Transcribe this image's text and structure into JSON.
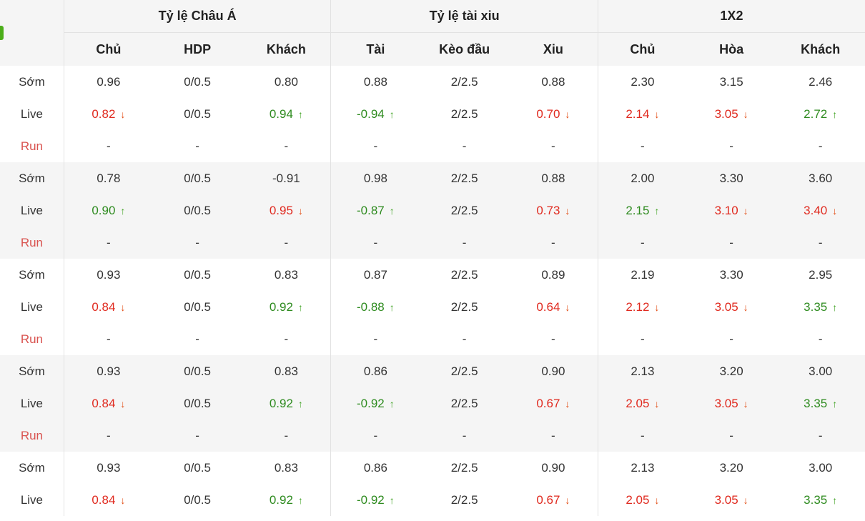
{
  "colors": {
    "up": "#2e8b1f",
    "down": "#e02a1f",
    "run_label": "#d9534f",
    "header_bg": "#f5f5f5",
    "accent_tab": "#4cae1a"
  },
  "groups": [
    "Tỷ lệ Châu Á",
    "Tỷ lệ tài xiu",
    "1X2"
  ],
  "columns": [
    "Chủ",
    "HDP",
    "Khách",
    "Tài",
    "Kèo đầu",
    "Xiu",
    "Chủ",
    "Hòa",
    "Khách"
  ],
  "rows": [
    {
      "label": "Sớm",
      "cells": [
        {
          "v": "0.96"
        },
        {
          "v": "0/0.5"
        },
        {
          "v": "0.80"
        },
        {
          "v": "0.88"
        },
        {
          "v": "2/2.5"
        },
        {
          "v": "0.88"
        },
        {
          "v": "2.30"
        },
        {
          "v": "3.15"
        },
        {
          "v": "2.46"
        }
      ]
    },
    {
      "label": "Live",
      "cells": [
        {
          "v": "0.82",
          "d": "down"
        },
        {
          "v": "0/0.5"
        },
        {
          "v": "0.94",
          "d": "up"
        },
        {
          "v": "-0.94",
          "d": "up"
        },
        {
          "v": "2/2.5"
        },
        {
          "v": "0.70",
          "d": "down"
        },
        {
          "v": "2.14",
          "d": "down"
        },
        {
          "v": "3.05",
          "d": "down"
        },
        {
          "v": "2.72",
          "d": "up"
        }
      ]
    },
    {
      "label": "Run",
      "cells": [
        {
          "v": "-"
        },
        {
          "v": "-"
        },
        {
          "v": "-"
        },
        {
          "v": "-"
        },
        {
          "v": "-"
        },
        {
          "v": "-"
        },
        {
          "v": "-"
        },
        {
          "v": "-"
        },
        {
          "v": "-"
        }
      ]
    },
    {
      "label": "Sớm",
      "cells": [
        {
          "v": "0.78"
        },
        {
          "v": "0/0.5"
        },
        {
          "v": "-0.91"
        },
        {
          "v": "0.98"
        },
        {
          "v": "2/2.5"
        },
        {
          "v": "0.88"
        },
        {
          "v": "2.00"
        },
        {
          "v": "3.30"
        },
        {
          "v": "3.60"
        }
      ]
    },
    {
      "label": "Live",
      "cells": [
        {
          "v": "0.90",
          "d": "up"
        },
        {
          "v": "0/0.5"
        },
        {
          "v": "0.95",
          "d": "down"
        },
        {
          "v": "-0.87",
          "d": "up"
        },
        {
          "v": "2/2.5"
        },
        {
          "v": "0.73",
          "d": "down"
        },
        {
          "v": "2.15",
          "d": "up"
        },
        {
          "v": "3.10",
          "d": "down"
        },
        {
          "v": "3.40",
          "d": "down"
        }
      ]
    },
    {
      "label": "Run",
      "cells": [
        {
          "v": "-"
        },
        {
          "v": "-"
        },
        {
          "v": "-"
        },
        {
          "v": "-"
        },
        {
          "v": "-"
        },
        {
          "v": "-"
        },
        {
          "v": "-"
        },
        {
          "v": "-"
        },
        {
          "v": "-"
        }
      ]
    },
    {
      "label": "Sớm",
      "cells": [
        {
          "v": "0.93"
        },
        {
          "v": "0/0.5"
        },
        {
          "v": "0.83"
        },
        {
          "v": "0.87"
        },
        {
          "v": "2/2.5"
        },
        {
          "v": "0.89"
        },
        {
          "v": "2.19"
        },
        {
          "v": "3.30"
        },
        {
          "v": "2.95"
        }
      ]
    },
    {
      "label": "Live",
      "cells": [
        {
          "v": "0.84",
          "d": "down"
        },
        {
          "v": "0/0.5"
        },
        {
          "v": "0.92",
          "d": "up"
        },
        {
          "v": "-0.88",
          "d": "up"
        },
        {
          "v": "2/2.5"
        },
        {
          "v": "0.64",
          "d": "down"
        },
        {
          "v": "2.12",
          "d": "down"
        },
        {
          "v": "3.05",
          "d": "down"
        },
        {
          "v": "3.35",
          "d": "up"
        }
      ]
    },
    {
      "label": "Run",
      "cells": [
        {
          "v": "-"
        },
        {
          "v": "-"
        },
        {
          "v": "-"
        },
        {
          "v": "-"
        },
        {
          "v": "-"
        },
        {
          "v": "-"
        },
        {
          "v": "-"
        },
        {
          "v": "-"
        },
        {
          "v": "-"
        }
      ]
    },
    {
      "label": "Sớm",
      "cells": [
        {
          "v": "0.93"
        },
        {
          "v": "0/0.5"
        },
        {
          "v": "0.83"
        },
        {
          "v": "0.86"
        },
        {
          "v": "2/2.5"
        },
        {
          "v": "0.90"
        },
        {
          "v": "2.13"
        },
        {
          "v": "3.20"
        },
        {
          "v": "3.00"
        }
      ]
    },
    {
      "label": "Live",
      "cells": [
        {
          "v": "0.84",
          "d": "down"
        },
        {
          "v": "0/0.5"
        },
        {
          "v": "0.92",
          "d": "up"
        },
        {
          "v": "-0.92",
          "d": "up"
        },
        {
          "v": "2/2.5"
        },
        {
          "v": "0.67",
          "d": "down"
        },
        {
          "v": "2.05",
          "d": "down"
        },
        {
          "v": "3.05",
          "d": "down"
        },
        {
          "v": "3.35",
          "d": "up"
        }
      ]
    },
    {
      "label": "Run",
      "cells": [
        {
          "v": "-"
        },
        {
          "v": "-"
        },
        {
          "v": "-"
        },
        {
          "v": "-"
        },
        {
          "v": "-"
        },
        {
          "v": "-"
        },
        {
          "v": "-"
        },
        {
          "v": "-"
        },
        {
          "v": "-"
        }
      ]
    },
    {
      "label": "Sớm",
      "cells": [
        {
          "v": "0.93"
        },
        {
          "v": "0/0.5"
        },
        {
          "v": "0.83"
        },
        {
          "v": "0.86"
        },
        {
          "v": "2/2.5"
        },
        {
          "v": "0.90"
        },
        {
          "v": "2.13"
        },
        {
          "v": "3.20"
        },
        {
          "v": "3.00"
        }
      ]
    },
    {
      "label": "Live",
      "cells": [
        {
          "v": "0.84",
          "d": "down"
        },
        {
          "v": "0/0.5"
        },
        {
          "v": "0.92",
          "d": "up"
        },
        {
          "v": "-0.92",
          "d": "up"
        },
        {
          "v": "2/2.5"
        },
        {
          "v": "0.67",
          "d": "down"
        },
        {
          "v": "2.05",
          "d": "down"
        },
        {
          "v": "3.05",
          "d": "down"
        },
        {
          "v": "3.35",
          "d": "up"
        }
      ]
    }
  ]
}
